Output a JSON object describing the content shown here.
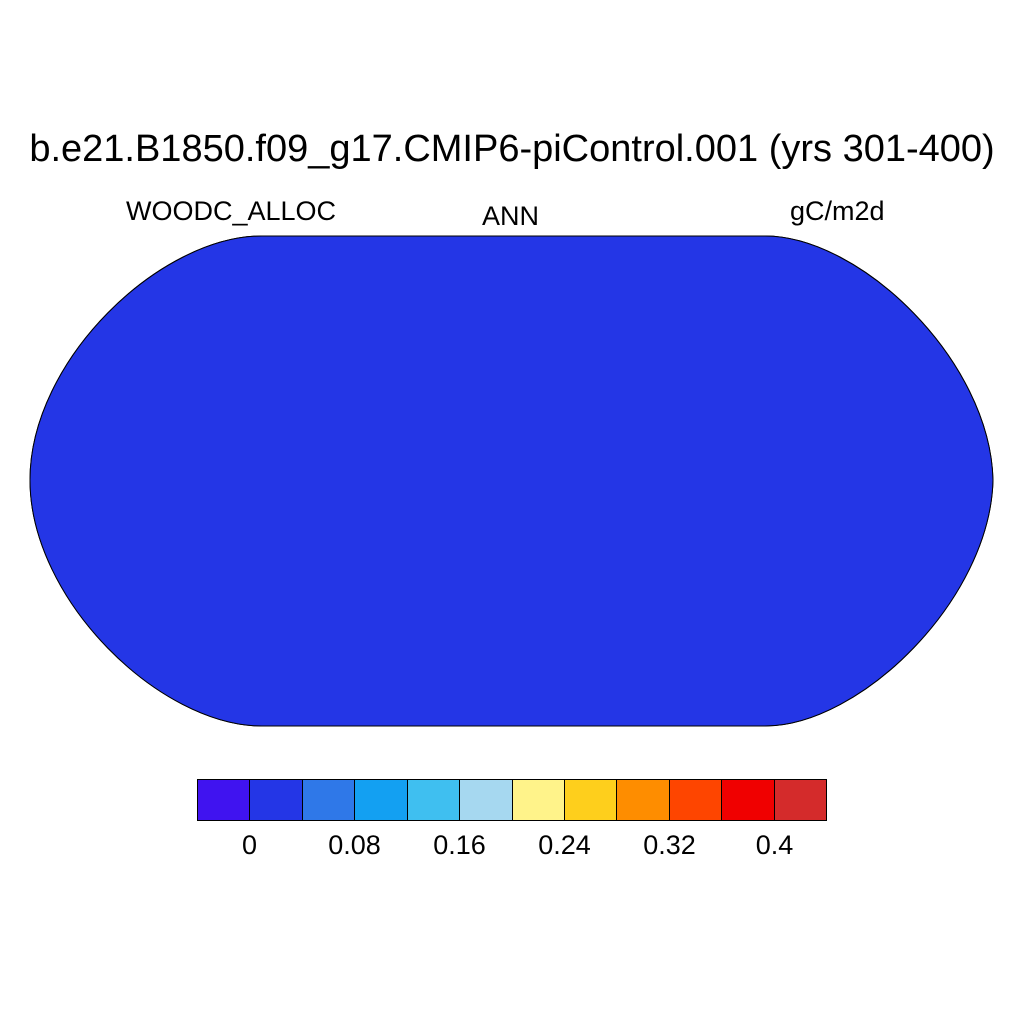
{
  "title": "b.e21.B1850.f09_g17.CMIP6-piControl.001 (yrs 301-400)",
  "left_label": "WOODC_ALLOC",
  "center_label": "ANN",
  "right_label": "gC/m2d",
  "colorbar": {
    "colors": [
      "#4013F0",
      "#2436E6",
      "#2F78E8",
      "#13A0F2",
      "#3FBFF0",
      "#A6D8F0",
      "#FFF38A",
      "#FECF1C",
      "#FE8D00",
      "#FE4500",
      "#F00000",
      "#D42B2B"
    ],
    "labels": [
      "0",
      "0.08",
      "0.16",
      "0.24",
      "0.32",
      "0.4"
    ]
  },
  "map": {
    "projection": "Robinson",
    "ocean_fill": "#2436E6",
    "high_value_fill": "#D42B2B"
  }
}
